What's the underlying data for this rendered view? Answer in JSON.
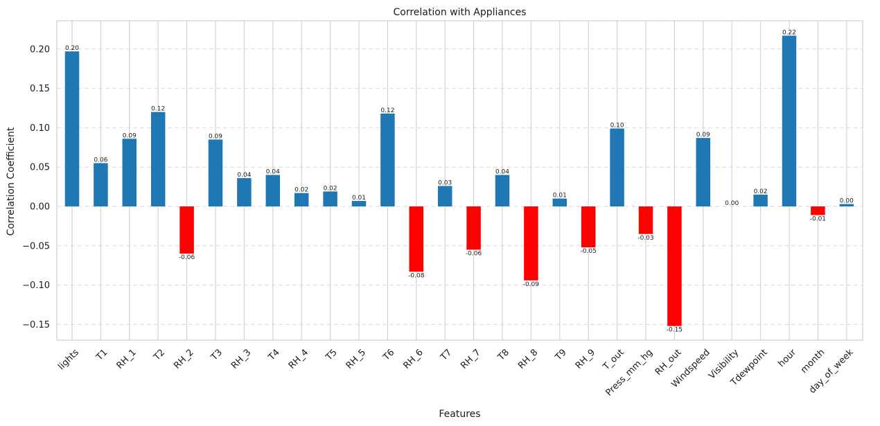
{
  "chart_data": {
    "type": "bar",
    "title": "Correlation with Appliances",
    "xlabel": "Features",
    "ylabel": "Correlation Coefficient",
    "ylim": [
      -0.17,
      0.235
    ],
    "yticks": [
      0.2,
      0.15,
      0.1,
      0.05,
      0.0,
      -0.05,
      -0.1,
      -0.15
    ],
    "ytick_labels": [
      "0.20",
      "0.15",
      "0.10",
      "0.05",
      "0.00",
      "−0.05",
      "−0.10",
      "−0.15"
    ],
    "grid": "both",
    "colors": {
      "positive": "#1f77b4",
      "negative": "#ff0000"
    },
    "categories": [
      "lights",
      "T1",
      "RH_1",
      "T2",
      "RH_2",
      "T3",
      "RH_3",
      "T4",
      "RH_4",
      "T5",
      "RH_5",
      "T6",
      "RH_6",
      "T7",
      "RH_7",
      "T8",
      "RH_8",
      "T9",
      "RH_9",
      "T_out",
      "Press_mm_hg",
      "RH_out",
      "Windspeed",
      "Visibility",
      "Tdewpoint",
      "hour",
      "month",
      "day_of_week"
    ],
    "values": [
      0.197,
      0.055,
      0.086,
      0.12,
      -0.06,
      0.085,
      0.036,
      0.04,
      0.017,
      0.019,
      0.007,
      0.118,
      -0.083,
      0.026,
      -0.055,
      0.04,
      -0.094,
      0.01,
      -0.052,
      0.099,
      -0.035,
      -0.152,
      0.087,
      0.0,
      0.015,
      0.217,
      -0.011,
      0.003
    ],
    "data_labels": [
      "0.20",
      "0.06",
      "0.09",
      "0.12",
      "-0.06",
      "0.09",
      "0.04",
      "0.04",
      "0.02",
      "0.02",
      "0.01",
      "0.12",
      "-0.08",
      "0.03",
      "-0.06",
      "0.04",
      "-0.09",
      "0.01",
      "-0.05",
      "0.10",
      "-0.03",
      "-0.15",
      "0.09",
      "0.00",
      "0.02",
      "0.22",
      "-0.01",
      "0.00"
    ]
  }
}
